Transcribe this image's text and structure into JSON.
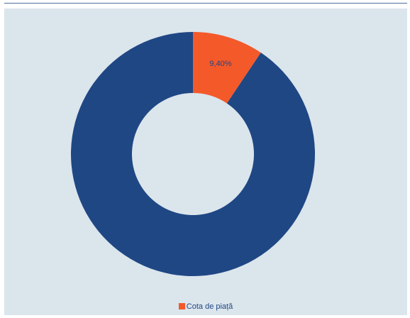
{
  "colors": {
    "panel_background": "#dbe5ec",
    "top_rule": "#4d6d9a",
    "share": "#f4592a",
    "remainder": "#1f4784",
    "hole": "#ffffff",
    "label_text": "#1f4784"
  },
  "chart_data": {
    "type": "pie",
    "subtype": "donut",
    "title": "",
    "series": [
      {
        "name": "Cota de piață",
        "value": 9.4,
        "label": "9,40%",
        "color": "#f4592a"
      },
      {
        "name": "",
        "value": 90.6,
        "label": "",
        "color": "#1f4784"
      }
    ],
    "start_angle_deg": 0,
    "direction": "clockwise",
    "legend": {
      "placement": "bottom-center",
      "entries": [
        "Cota de piață"
      ]
    }
  }
}
